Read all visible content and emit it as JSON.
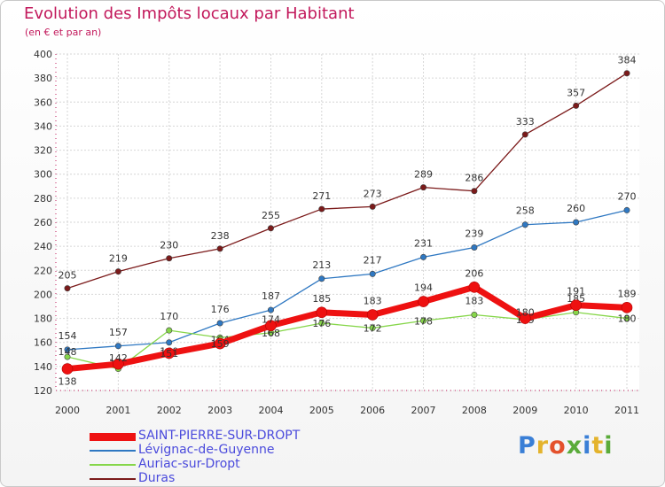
{
  "title": "Evolution des Impôts locaux par Habitant",
  "subtitle": "(en € et par an)",
  "logo": {
    "text": "Proxiti",
    "letter_colors": [
      "#3a7fd6",
      "#e4b32c",
      "#e4512c",
      "#5aab3a",
      "#3a7fd6",
      "#e4b32c",
      "#5aab3a"
    ]
  },
  "chart_data": {
    "type": "line",
    "title": "Evolution des Impôts locaux par Habitant",
    "subtitle": "(en € et par an)",
    "xlabel": "",
    "ylabel": "",
    "ylim": [
      120,
      400
    ],
    "y_ticks": [
      "120",
      "140",
      "160",
      "180",
      "200",
      "220",
      "240",
      "260",
      "280",
      "300",
      "320",
      "340",
      "360",
      "380",
      "400"
    ],
    "grid": true,
    "legend_position": "bottom-left",
    "x": [
      "2000",
      "2001",
      "2002",
      "2003",
      "2004",
      "2005",
      "2006",
      "2007",
      "2008",
      "2009",
      "2010",
      "2011"
    ],
    "series": [
      {
        "name": "Duras",
        "color": "#7b1a1a",
        "values": [
          205,
          219,
          230,
          238,
          255,
          271,
          273,
          289,
          286,
          333,
          357,
          384
        ],
        "labels": [
          "205",
          "219",
          "230",
          "238",
          "255",
          "271",
          "273",
          "289",
          "286",
          "333",
          "357",
          "384"
        ]
      },
      {
        "name": "Lévignac-de-Guyenne",
        "color": "#2f78c2",
        "values": [
          154,
          157,
          160,
          176,
          187,
          213,
          217,
          231,
          239,
          258,
          260,
          270
        ],
        "labels": [
          "154",
          "157",
          "160",
          "176",
          "187",
          "213",
          "217",
          "231",
          "239",
          "258",
          "260",
          "270"
        ]
      },
      {
        "name": "Auriac-sur-Dropt",
        "color": "#86d64a",
        "values": [
          148,
          138,
          170,
          164,
          168,
          176,
          172,
          178,
          183,
          179,
          185,
          180
        ],
        "labels": [
          "148",
          "138",
          "170",
          "164",
          "168",
          "176",
          "172",
          "178",
          "183",
          "179",
          "185",
          "180"
        ]
      },
      {
        "name": "SAINT-PIERRE-SUR-DROPT",
        "color": "#ee1111",
        "values": [
          138,
          142,
          151,
          159,
          174,
          185,
          183,
          194,
          206,
          180,
          191,
          189
        ],
        "labels": [
          "138",
          "142",
          "151",
          "159",
          "174",
          "185",
          "183",
          "194",
          "206",
          "180",
          "191",
          "189"
        ]
      }
    ]
  },
  "legend": [
    {
      "name": "SAINT-PIERRE-SUR-DROPT",
      "color": "#ee1111"
    },
    {
      "name": "Lévignac-de-Guyenne",
      "color": "#2f78c2"
    },
    {
      "name": "Auriac-sur-Dropt",
      "color": "#86d64a"
    },
    {
      "name": "Duras",
      "color": "#7b1a1a"
    }
  ]
}
